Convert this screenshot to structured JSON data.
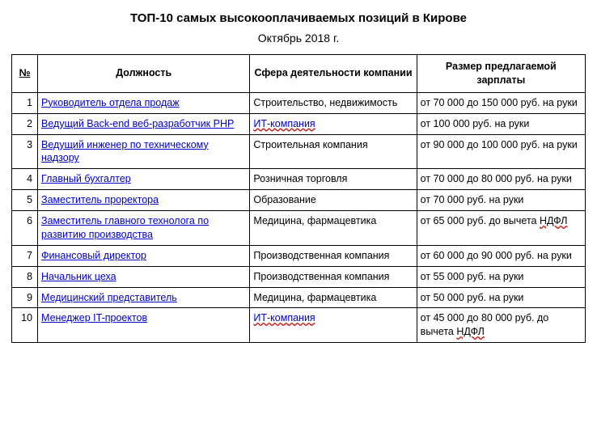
{
  "title": "ТОП-10 самых высокооплачиваемых позиций в Кирове",
  "subtitle": "Октябрь 2018 г.",
  "columns": {
    "num": "№",
    "position": "Должность",
    "sphere": "Сфера деятельности компании",
    "salary": "Размер предлагаемой зарплаты"
  },
  "rows": [
    {
      "n": "1",
      "pos": "Руководитель отдела продаж",
      "sphere_plain": "Строительство, недвижимость",
      "sal_pre": "от 70 000 до 150 000 руб. на руки"
    },
    {
      "n": "2",
      "pos": "Ведущий Back-end веб-разработчик PHP",
      "sphere_link": "ИТ-компания",
      "sal_pre": "от 100 000 руб. на руки"
    },
    {
      "n": "3",
      "pos": "Ведущий инженер по техническому надзору",
      "sphere_plain": "Строительная компания",
      "sal_pre": "от 90 000 до 100 000 руб. на руки"
    },
    {
      "n": "4",
      "pos": "Главный бухгалтер",
      "sphere_plain": "Розничная торговля",
      "sal_pre": "от 70 000 до 80 000 руб. на руки"
    },
    {
      "n": "5",
      "pos": "Заместитель проректора",
      "sphere_plain": "Образование",
      "sal_pre": "от 70 000 руб. на руки"
    },
    {
      "n": "6",
      "pos": "Заместитель главного технолога по развитию производства",
      "sphere_plain": "Медицина, фармацевтика",
      "sal_pre": "от 65 000 руб. до вычета ",
      "sal_spell": "НДФЛ"
    },
    {
      "n": "7",
      "pos": "Финансовый директор",
      "sphere_plain": "Производственная компания",
      "sal_pre": "от 60 000 до 90 000 руб. на руки"
    },
    {
      "n": "8",
      "pos": "Начальник цеха",
      "sphere_plain": "Производственная компания",
      "sal_pre": "от 55 000 руб. на руки"
    },
    {
      "n": "9",
      "pos": "Медицинский представитель",
      "sphere_plain": "Медицина, фармацевтика",
      "sal_pre": "от 50 000 руб. на руки"
    },
    {
      "n": "10",
      "pos": "Менеджер IT-проектов",
      "sphere_link": "ИТ-компания",
      "sal_pre": "от 45 000 до 80 000 руб. до вычета ",
      "sal_spell": "НДФЛ"
    }
  ]
}
